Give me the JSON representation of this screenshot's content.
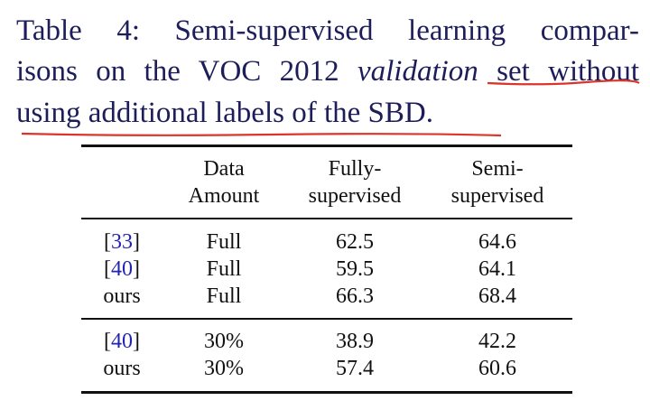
{
  "caption": {
    "line1": "Table 4:  Semi-supervised learning compar-",
    "line2_before": "isons on the VOC 2012 ",
    "line2_italic": "validation",
    "line2_after": " set without",
    "line3": "using additional labels of the SBD."
  },
  "table": {
    "headers": [
      [
        "Data",
        "Amount"
      ],
      [
        "Fully-",
        "supervised"
      ],
      [
        "Semi-",
        "supervised"
      ]
    ],
    "groups": [
      [
        {
          "label": [
            "[",
            "33",
            "]"
          ],
          "cells": [
            "Full",
            "62.5",
            "64.6"
          ]
        },
        {
          "label": [
            "[",
            "40",
            "]"
          ],
          "cells": [
            "Full",
            "59.5",
            "64.1"
          ]
        },
        {
          "label": [
            "ours"
          ],
          "cells": [
            "Full",
            "66.3",
            "68.4"
          ]
        }
      ],
      [
        {
          "label": [
            "[",
            "40",
            "]"
          ],
          "cells": [
            "30%",
            "38.9",
            "42.2"
          ]
        },
        {
          "label": [
            "ours"
          ],
          "cells": [
            "30%",
            "57.4",
            "60.6"
          ]
        }
      ]
    ]
  }
}
